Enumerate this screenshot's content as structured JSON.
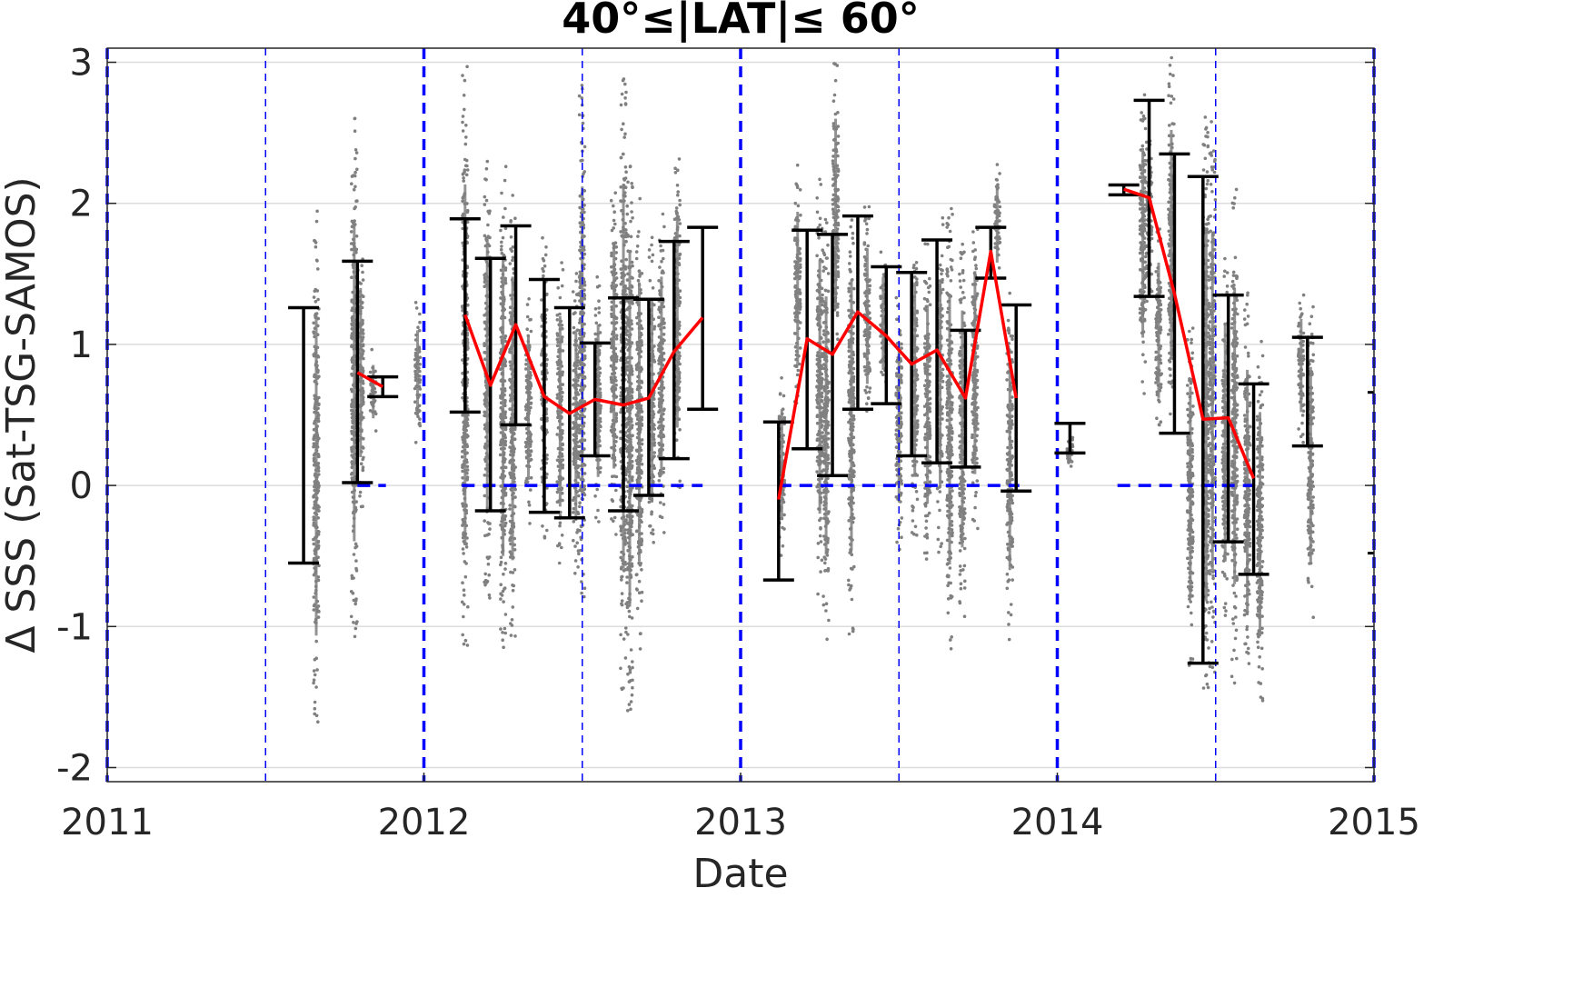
{
  "chart_data": {
    "type": "scatter",
    "title": "40°≤|LAT|≤ 60°",
    "xlabel": "Date",
    "ylabel": "Δ SSS (Sat-TSG-SAMOS)",
    "xlim": [
      2011,
      2015
    ],
    "ylim": [
      -2.1,
      3.1
    ],
    "x_ticks": [
      "2011",
      "2012",
      "2013",
      "2014",
      "2015"
    ],
    "y_ticks": [
      "-2",
      "-1",
      "0",
      "1",
      "2",
      "3"
    ],
    "grid": true,
    "vertical_markers": {
      "year_boundaries": [
        2011.0,
        2012.0,
        2013.0,
        2014.0,
        2015.0
      ],
      "half_year": [
        2011.5,
        2012.5,
        2013.5,
        2014.5
      ]
    },
    "zero_line_segments": [
      [
        2011.79,
        2011.88
      ],
      [
        2012.12,
        2012.88
      ],
      [
        2013.12,
        2013.88
      ],
      [
        2014.19,
        2014.62
      ]
    ],
    "error_bars": [
      {
        "x": 2011.62,
        "low": -0.55,
        "high": 1.26
      },
      {
        "x": 2011.79,
        "low": 0.02,
        "high": 1.59
      },
      {
        "x": 2011.87,
        "low": 0.63,
        "high": 0.77
      },
      {
        "x": 2012.13,
        "low": 0.52,
        "high": 1.89
      },
      {
        "x": 2012.21,
        "low": -0.18,
        "high": 1.61
      },
      {
        "x": 2012.29,
        "low": 0.43,
        "high": 1.84
      },
      {
        "x": 2012.38,
        "low": -0.19,
        "high": 1.46
      },
      {
        "x": 2012.46,
        "low": -0.23,
        "high": 1.26
      },
      {
        "x": 2012.54,
        "low": 0.21,
        "high": 1.01
      },
      {
        "x": 2012.63,
        "low": -0.18,
        "high": 1.33
      },
      {
        "x": 2012.71,
        "low": -0.07,
        "high": 1.32
      },
      {
        "x": 2012.79,
        "low": 0.19,
        "high": 1.73
      },
      {
        "x": 2012.88,
        "low": 0.54,
        "high": 1.83
      },
      {
        "x": 2013.12,
        "low": -0.67,
        "high": 0.45
      },
      {
        "x": 2013.21,
        "low": 0.26,
        "high": 1.81
      },
      {
        "x": 2013.29,
        "low": 0.07,
        "high": 1.78
      },
      {
        "x": 2013.37,
        "low": 0.54,
        "high": 1.91
      },
      {
        "x": 2013.46,
        "low": 0.58,
        "high": 1.55
      },
      {
        "x": 2013.54,
        "low": 0.21,
        "high": 1.51
      },
      {
        "x": 2013.62,
        "low": 0.16,
        "high": 1.74
      },
      {
        "x": 2013.71,
        "low": 0.13,
        "high": 1.1
      },
      {
        "x": 2013.79,
        "low": 1.47,
        "high": 1.83
      },
      {
        "x": 2013.87,
        "low": -0.04,
        "high": 1.28
      },
      {
        "x": 2014.04,
        "low": 0.23,
        "high": 0.44
      },
      {
        "x": 2014.21,
        "low": 2.06,
        "high": 2.13
      },
      {
        "x": 2014.29,
        "low": 1.34,
        "high": 2.73
      },
      {
        "x": 2014.37,
        "low": 0.37,
        "high": 2.35
      },
      {
        "x": 2014.46,
        "low": -1.26,
        "high": 2.19
      },
      {
        "x": 2014.54,
        "low": -0.4,
        "high": 1.35
      },
      {
        "x": 2014.62,
        "low": -0.63,
        "high": 0.72
      },
      {
        "x": 2014.79,
        "low": 0.28,
        "high": 1.05
      }
    ],
    "series": [
      {
        "color": "#ff0000",
        "segments": [
          {
            "x": [
              2011.79,
              2011.87
            ],
            "y": [
              0.8,
              0.7
            ]
          },
          {
            "x": [
              2012.13,
              2012.21,
              2012.29,
              2012.38,
              2012.46,
              2012.54,
              2012.63,
              2012.71,
              2012.79,
              2012.88
            ],
            "y": [
              1.21,
              0.71,
              1.14,
              0.63,
              0.51,
              0.61,
              0.57,
              0.62,
              0.95,
              1.19
            ]
          },
          {
            "x": [
              2013.12,
              2013.21,
              2013.29,
              2013.37,
              2013.46,
              2013.54,
              2013.62,
              2013.71,
              2013.79,
              2013.87
            ],
            "y": [
              -0.1,
              1.04,
              0.93,
              1.23,
              1.06,
              0.86,
              0.96,
              0.62,
              1.66,
              0.62
            ]
          },
          {
            "x": [
              2014.21,
              2014.29,
              2014.37,
              2014.46,
              2014.54,
              2014.62
            ],
            "y": [
              2.1,
              2.04,
              1.36,
              0.47,
              0.48,
              0.05
            ]
          }
        ]
      }
    ],
    "scatter_clusters": [
      {
        "x": 2011.66,
        "y_min": -1.82,
        "y_max": 1.96
      },
      {
        "x": 2011.78,
        "y_min": -1.15,
        "y_max": 2.62
      },
      {
        "x": 2011.8,
        "y_min": -0.2,
        "y_max": 1.8
      },
      {
        "x": 2011.84,
        "y_min": 0.35,
        "y_max": 0.98
      },
      {
        "x": 2011.98,
        "y_min": 0.3,
        "y_max": 1.3
      },
      {
        "x": 2012.13,
        "y_min": -1.25,
        "y_max": 2.98
      },
      {
        "x": 2012.2,
        "y_min": -0.8,
        "y_max": 2.4
      },
      {
        "x": 2012.25,
        "y_min": -1.2,
        "y_max": 2.3
      },
      {
        "x": 2012.28,
        "y_min": -1.2,
        "y_max": 2.15
      },
      {
        "x": 2012.33,
        "y_min": -0.3,
        "y_max": 1.4
      },
      {
        "x": 2012.38,
        "y_min": -0.4,
        "y_max": 1.8
      },
      {
        "x": 2012.43,
        "y_min": -0.6,
        "y_max": 1.65
      },
      {
        "x": 2012.48,
        "y_min": -0.7,
        "y_max": 1.55
      },
      {
        "x": 2012.5,
        "y_min": -0.8,
        "y_max": 2.85
      },
      {
        "x": 2012.55,
        "y_min": -0.3,
        "y_max": 1.5
      },
      {
        "x": 2012.6,
        "y_min": -0.4,
        "y_max": 2.2
      },
      {
        "x": 2012.63,
        "y_min": -1.5,
        "y_max": 3.05
      },
      {
        "x": 2012.65,
        "y_min": -1.7,
        "y_max": 2.5
      },
      {
        "x": 2012.68,
        "y_min": -1.2,
        "y_max": 2.1
      },
      {
        "x": 2012.72,
        "y_min": -0.6,
        "y_max": 1.8
      },
      {
        "x": 2012.75,
        "y_min": -0.4,
        "y_max": 1.95
      },
      {
        "x": 2012.8,
        "y_min": -0.1,
        "y_max": 2.45
      },
      {
        "x": 2013.13,
        "y_min": -0.5,
        "y_max": 0.8
      },
      {
        "x": 2013.18,
        "y_min": 0.5,
        "y_max": 2.3
      },
      {
        "x": 2013.25,
        "y_min": -0.8,
        "y_max": 2.2
      },
      {
        "x": 2013.27,
        "y_min": -1.1,
        "y_max": 1.95
      },
      {
        "x": 2013.3,
        "y_min": 0.8,
        "y_max": 3.05
      },
      {
        "x": 2013.35,
        "y_min": -1.1,
        "y_max": 2.1
      },
      {
        "x": 2013.4,
        "y_min": 0.4,
        "y_max": 2.0
      },
      {
        "x": 2013.45,
        "y_min": 0.6,
        "y_max": 1.7
      },
      {
        "x": 2013.5,
        "y_min": -0.5,
        "y_max": 1.4
      },
      {
        "x": 2013.55,
        "y_min": -0.4,
        "y_max": 1.9
      },
      {
        "x": 2013.59,
        "y_min": -0.6,
        "y_max": 1.75
      },
      {
        "x": 2013.63,
        "y_min": -0.5,
        "y_max": 1.95
      },
      {
        "x": 2013.66,
        "y_min": -1.2,
        "y_max": 2.0
      },
      {
        "x": 2013.7,
        "y_min": -1.0,
        "y_max": 1.8
      },
      {
        "x": 2013.74,
        "y_min": -0.4,
        "y_max": 2.0
      },
      {
        "x": 2013.81,
        "y_min": 1.4,
        "y_max": 2.3
      },
      {
        "x": 2013.85,
        "y_min": -1.1,
        "y_max": 1.4
      },
      {
        "x": 2014.04,
        "y_min": 0.1,
        "y_max": 0.4
      },
      {
        "x": 2014.27,
        "y_min": 0.6,
        "y_max": 2.84
      },
      {
        "x": 2014.29,
        "y_min": 1.3,
        "y_max": 2.6
      },
      {
        "x": 2014.32,
        "y_min": 0.3,
        "y_max": 1.9
      },
      {
        "x": 2014.36,
        "y_min": 0.4,
        "y_max": 3.05
      },
      {
        "x": 2014.42,
        "y_min": -1.3,
        "y_max": 1.2
      },
      {
        "x": 2014.47,
        "y_min": -1.7,
        "y_max": 2.7
      },
      {
        "x": 2014.49,
        "y_min": -1.4,
        "y_max": 2.6
      },
      {
        "x": 2014.53,
        "y_min": -1.1,
        "y_max": 1.7
      },
      {
        "x": 2014.56,
        "y_min": -1.4,
        "y_max": 2.1
      },
      {
        "x": 2014.6,
        "y_min": -1.5,
        "y_max": 1.4
      },
      {
        "x": 2014.64,
        "y_min": -1.6,
        "y_max": 1.05
      },
      {
        "x": 2014.77,
        "y_min": 0.3,
        "y_max": 1.4
      },
      {
        "x": 2014.8,
        "y_min": -1.0,
        "y_max": 1.3
      }
    ],
    "edge_ticks": [
      {
        "x": 2015.0,
        "y": 0.66
      },
      {
        "x": 2015.0,
        "y": -0.48
      }
    ],
    "colors": {
      "scatter": "#808080",
      "error_bar": "#000000",
      "mean_line": "#ff0000",
      "markers": "#0000ff",
      "grid": "#dcdcdc"
    }
  }
}
